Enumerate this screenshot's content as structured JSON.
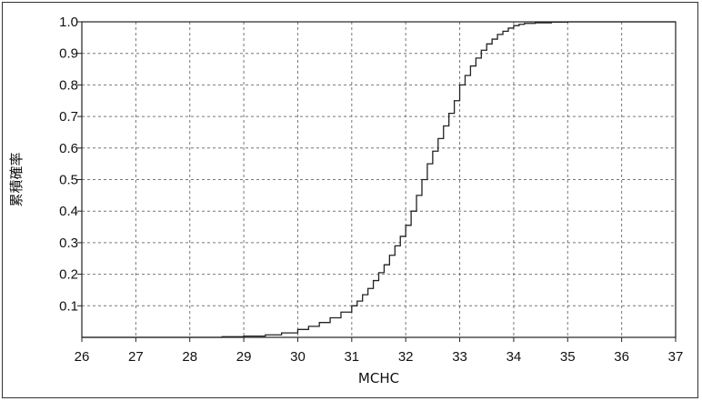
{
  "chart_data": {
    "type": "line",
    "step": true,
    "xlabel": "MCHC",
    "ylabel": "累積確率",
    "xlim": [
      26,
      37
    ],
    "ylim": [
      0,
      1
    ],
    "xticks": [
      "26",
      "27",
      "28",
      "29",
      "30",
      "31",
      "32",
      "33",
      "34",
      "35",
      "36",
      "37"
    ],
    "yticks": [
      "0.1",
      "0.2",
      "0.3",
      "0.4",
      "0.5",
      "0.6",
      "0.7",
      "0.8",
      "0.9",
      "1.0"
    ],
    "grid": true,
    "series": [
      {
        "color": "#222222",
        "x": [
          26,
          28.6,
          29.0,
          29.4,
          29.7,
          30.0,
          30.2,
          30.4,
          30.6,
          30.8,
          31.0,
          31.1,
          31.2,
          31.3,
          31.4,
          31.5,
          31.6,
          31.7,
          31.8,
          31.9,
          32.0,
          32.1,
          32.2,
          32.3,
          32.4,
          32.5,
          32.6,
          32.7,
          32.8,
          32.9,
          33.0,
          33.1,
          33.2,
          33.3,
          33.4,
          33.5,
          33.6,
          33.7,
          33.8,
          33.9,
          34.0,
          34.1,
          34.2,
          34.4,
          34.7,
          35.0,
          37
        ],
        "y": [
          0.0,
          0.002,
          0.004,
          0.008,
          0.014,
          0.025,
          0.035,
          0.047,
          0.062,
          0.08,
          0.1,
          0.115,
          0.135,
          0.155,
          0.18,
          0.205,
          0.23,
          0.26,
          0.29,
          0.32,
          0.355,
          0.4,
          0.45,
          0.5,
          0.55,
          0.59,
          0.63,
          0.67,
          0.71,
          0.75,
          0.8,
          0.83,
          0.86,
          0.885,
          0.91,
          0.93,
          0.945,
          0.96,
          0.97,
          0.98,
          0.988,
          0.992,
          0.995,
          0.997,
          0.999,
          1.0,
          1.0
        ]
      }
    ]
  }
}
